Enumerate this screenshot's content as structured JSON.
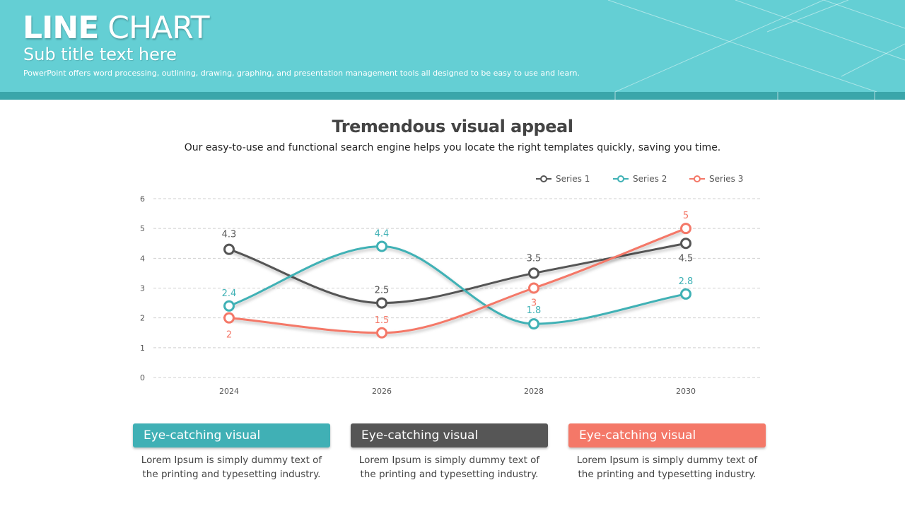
{
  "header": {
    "title_bold": "LINE",
    "title_light": " CHART",
    "subtitle": "Sub title text here",
    "description": "PowerPoint offers word processing, outlining, drawing, graphing, and presentation management tools all designed to be easy to use and learn."
  },
  "colors": {
    "header_bg": "#64cfd4",
    "header_band": "#3aa6aa",
    "series1": "#555555",
    "series2": "#3fb1b5",
    "series3": "#f47868"
  },
  "chart_data": {
    "type": "line",
    "title": "Tremendous visual appeal",
    "subtitle": "Our easy-to-use and functional search engine helps you locate the right templates quickly, saving you time.",
    "categories": [
      "2024",
      "2026",
      "2028",
      "2030"
    ],
    "series": [
      {
        "name": "Series 1",
        "values": [
          4.3,
          2.5,
          3.5,
          4.5
        ],
        "labels": [
          "4.3",
          "2.5",
          "3.5",
          "4.5"
        ],
        "color": "#555555"
      },
      {
        "name": "Series 2",
        "values": [
          2.4,
          4.4,
          1.8,
          2.8
        ],
        "labels": [
          "2.4",
          "4.4",
          "1.8",
          "2.8"
        ],
        "color": "#3fb1b5"
      },
      {
        "name": "Series 3",
        "values": [
          2,
          1.5,
          3,
          5
        ],
        "labels": [
          "2",
          "1.5",
          "3",
          "5"
        ],
        "color": "#f47868"
      }
    ],
    "yticks": [
      "0",
      "1",
      "2",
      "3",
      "4",
      "5",
      "6"
    ],
    "ylim": [
      0,
      6
    ],
    "grid": true,
    "smooth": true,
    "legend": "top-right"
  },
  "cards": [
    {
      "title": "Eye-catching visual",
      "text": "Lorem Ipsum is simply dummy text of the printing and typesetting industry.",
      "color": "#40b0b5"
    },
    {
      "title": "Eye-catching visual",
      "text": "Lorem Ipsum is simply dummy text of the printing and typesetting industry.",
      "color": "#565656"
    },
    {
      "title": "Eye-catching visual",
      "text": "Lorem Ipsum is simply dummy text of the printing and typesetting industry.",
      "color": "#f47868"
    }
  ]
}
